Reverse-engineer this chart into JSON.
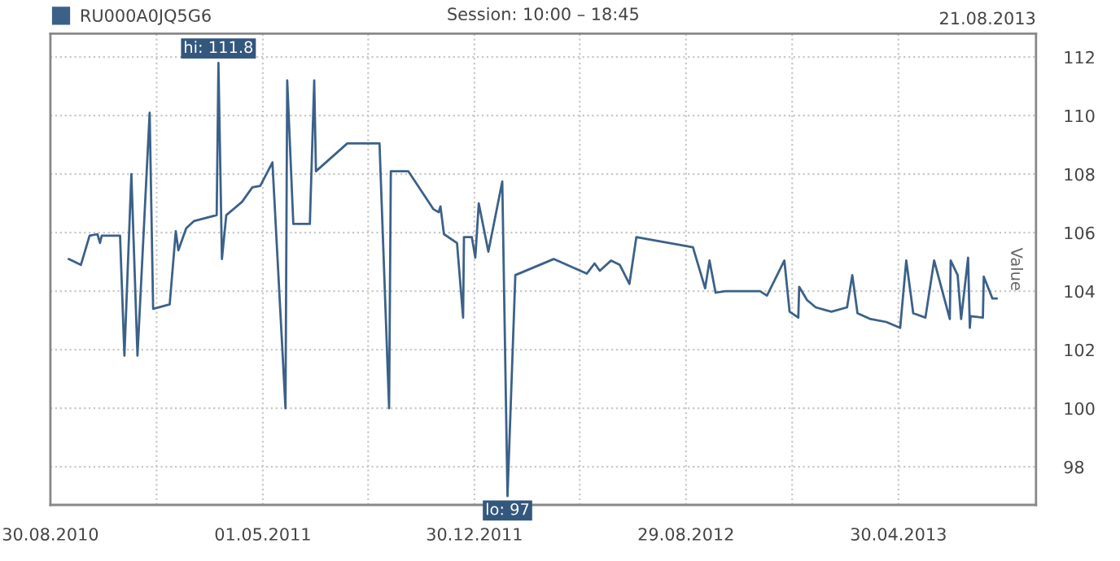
{
  "chart_data": {
    "type": "line",
    "title": "Session: 10:00 – 18:45",
    "ylabel": "Value",
    "annotations": [
      {
        "text": "hi: 111.8",
        "x": "2011-03-11",
        "y": 111.8
      },
      {
        "text": "lo: 97",
        "x": "2012-02-06",
        "y": 97
      },
      "21.08.2013"
    ],
    "x": [
      "2010-09-20",
      "2010-10-04",
      "2010-10-14",
      "2010-10-23",
      "2010-10-26",
      "2010-10-28",
      "2010-11-18",
      "2010-11-23",
      "2010-12-01",
      "2010-12-08",
      "2010-12-22",
      "2010-12-26",
      "2011-01-14",
      "2011-01-21",
      "2011-01-24",
      "2011-02-02",
      "2011-02-11",
      "2011-03-09",
      "2011-03-11",
      "2011-03-15",
      "2011-03-20",
      "2011-04-07",
      "2011-04-19",
      "2011-04-28",
      "2011-05-12",
      "2011-05-27",
      "2011-05-29",
      "2011-06-05",
      "2011-06-24",
      "2011-06-29",
      "2011-07-01",
      "2011-08-06",
      "2011-09-12",
      "2011-09-23",
      "2011-09-25",
      "2011-10-15",
      "2011-11-13",
      "2011-11-19",
      "2011-11-21",
      "2011-11-25",
      "2011-12-10",
      "2011-12-17",
      "2011-12-18",
      "2011-12-27",
      "2011-12-31",
      "2012-01-04",
      "2012-01-15",
      "2012-01-31",
      "2012-02-06",
      "2012-02-15",
      "2012-03-30",
      "2012-05-07",
      "2012-05-16",
      "2012-05-22",
      "2012-06-04",
      "2012-06-14",
      "2012-06-25",
      "2012-07-03",
      "2012-09-06",
      "2012-09-20",
      "2012-09-25",
      "2012-10-02",
      "2012-10-13",
      "2012-11-07",
      "2012-11-22",
      "2012-11-30",
      "2012-12-20",
      "2012-12-26",
      "2013-01-05",
      "2013-01-06",
      "2013-01-15",
      "2013-01-25",
      "2013-02-12",
      "2013-03-02",
      "2013-03-08",
      "2013-03-14",
      "2013-03-29",
      "2013-04-16",
      "2013-05-02",
      "2013-05-09",
      "2013-05-17",
      "2013-05-31",
      "2013-06-10",
      "2013-06-28",
      "2013-06-29",
      "2013-07-07",
      "2013-07-11",
      "2013-07-19",
      "2013-07-21",
      "2013-07-22",
      "2013-08-05",
      "2013-08-06",
      "2013-08-16",
      "2013-08-21"
    ],
    "series": [
      {
        "name": "RU000A0JQ5G6",
        "color": "#3b6189",
        "values": [
          105.1,
          104.9,
          105.9,
          105.95,
          105.65,
          105.9,
          105.9,
          101.8,
          108.0,
          101.8,
          110.1,
          103.4,
          103.55,
          106.05,
          105.4,
          106.15,
          106.4,
          106.6,
          111.8,
          105.1,
          106.6,
          107.05,
          107.55,
          107.6,
          108.4,
          100.0,
          111.2,
          106.3,
          106.3,
          111.2,
          108.1,
          109.05,
          109.05,
          100.0,
          108.1,
          108.1,
          106.8,
          106.7,
          106.9,
          105.95,
          105.65,
          103.1,
          105.85,
          105.85,
          105.15,
          107.0,
          105.35,
          107.75,
          97,
          104.55,
          105.1,
          104.6,
          104.95,
          104.7,
          105.05,
          104.9,
          104.25,
          105.85,
          105.5,
          104.1,
          105.05,
          103.95,
          104.0,
          104.0,
          104.0,
          103.85,
          105.05,
          103.3,
          103.1,
          104.15,
          103.7,
          103.45,
          103.3,
          103.45,
          104.55,
          103.25,
          103.05,
          102.95,
          102.75,
          105.05,
          103.25,
          103.1,
          105.05,
          103.05,
          105.05,
          104.55,
          103.05,
          105.15,
          102.75,
          103.15,
          103.1,
          104.5,
          103.75,
          103.75
        ]
      }
    ],
    "xlim": [
      "2010-08-30",
      "2013-10-05"
    ],
    "xticks": [
      {
        "value": "2010-08-30",
        "label": "30.08.2010"
      },
      {
        "value": "2010-12-30",
        "label": null
      },
      {
        "value": "2011-05-01",
        "label": "01.05.2011"
      },
      {
        "value": "2011-08-30",
        "label": null
      },
      {
        "value": "2011-12-30",
        "label": "30.12.2011"
      },
      {
        "value": "2012-04-29",
        "label": null
      },
      {
        "value": "2012-08-29",
        "label": "29.08.2012"
      },
      {
        "value": "2012-12-29",
        "label": null
      },
      {
        "value": "2013-04-30",
        "label": "30.04.2013"
      }
    ],
    "ylim": [
      96.7,
      112.8
    ],
    "yticks": [
      98,
      100,
      102,
      104,
      106,
      108,
      110,
      112
    ],
    "grid": true,
    "legend": "top left",
    "marker": "none",
    "line_style": "solid"
  }
}
